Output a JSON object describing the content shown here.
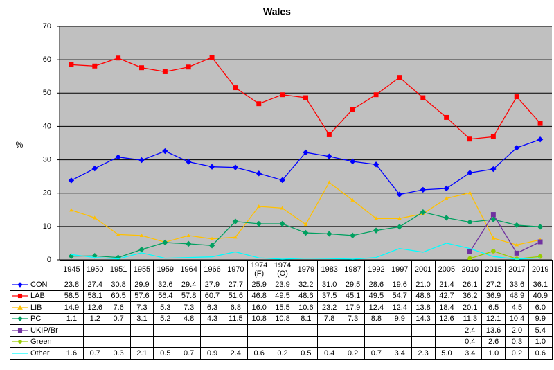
{
  "chart_data": {
    "type": "line",
    "title": "Wales",
    "y_label": "%",
    "categories": [
      "1945",
      "1950",
      "1951",
      "1955",
      "1959",
      "1964",
      "1966",
      "1970",
      "1974 (F)",
      "1974 (O)",
      "1979",
      "1983",
      "1987",
      "1992",
      "1997",
      "2001",
      "2005",
      "2010",
      "2015",
      "2017",
      "2019"
    ],
    "ylim": [
      0,
      70
    ],
    "yticks": [
      0,
      10,
      20,
      30,
      40,
      50,
      60,
      70
    ],
    "grid": true,
    "series": [
      {
        "name": "CON",
        "color": "#0000ff",
        "marker": "diamond",
        "values": [
          23.8,
          27.4,
          30.8,
          29.9,
          32.6,
          29.4,
          27.9,
          27.7,
          25.9,
          23.9,
          32.2,
          31.0,
          29.5,
          28.6,
          19.6,
          21.0,
          21.4,
          26.1,
          27.2,
          33.6,
          36.1
        ],
        "value_labels": [
          "23.8",
          "27.4",
          "30.8",
          "29.9",
          "32.6",
          "29.4",
          "27.9",
          "27.7",
          "25.9",
          "23.9",
          "32.2",
          "31.0",
          "29.5",
          "28.6",
          "19.6",
          "21.0",
          "21.4",
          "26.1",
          "27.2",
          "33.6",
          "36.1"
        ]
      },
      {
        "name": "LAB",
        "color": "#ff0000",
        "marker": "square",
        "values": [
          58.5,
          58.1,
          60.5,
          57.6,
          56.4,
          57.8,
          60.7,
          51.6,
          46.8,
          49.5,
          48.6,
          37.5,
          45.1,
          49.5,
          54.7,
          48.6,
          42.7,
          36.2,
          36.9,
          48.9,
          40.9
        ],
        "value_labels": [
          "58.5",
          "58.1",
          "60.5",
          "57.6",
          "56.4",
          "57.8",
          "60.7",
          "51.6",
          "46.8",
          "49.5",
          "48.6",
          "37.5",
          "45.1",
          "49.5",
          "54.7",
          "48.6",
          "42.7",
          "36.2",
          "36.9",
          "48.9",
          "40.9"
        ]
      },
      {
        "name": "LIB",
        "color": "#ffc000",
        "marker": "triangle",
        "values": [
          14.9,
          12.6,
          7.6,
          7.3,
          5.3,
          7.3,
          6.3,
          6.8,
          16.0,
          15.5,
          10.6,
          23.2,
          17.9,
          12.4,
          12.4,
          13.8,
          18.4,
          20.1,
          6.5,
          4.5,
          6.0
        ],
        "value_labels": [
          "14.9",
          "12.6",
          "7.6",
          "7.3",
          "5.3",
          "7.3",
          "6.3",
          "6.8",
          "16.0",
          "15.5",
          "10.6",
          "23.2",
          "17.9",
          "12.4",
          "12.4",
          "13.8",
          "18.4",
          "20.1",
          "6.5",
          "4.5",
          "6.0"
        ]
      },
      {
        "name": "PC",
        "color": "#00a060",
        "marker": "diamond",
        "values": [
          1.1,
          1.2,
          0.7,
          3.1,
          5.2,
          4.8,
          4.3,
          11.5,
          10.8,
          10.8,
          8.1,
          7.8,
          7.3,
          8.8,
          9.9,
          14.3,
          12.6,
          11.3,
          12.1,
          10.4,
          9.9
        ],
        "value_labels": [
          "1.1",
          "1.2",
          "0.7",
          "3.1",
          "5.2",
          "4.8",
          "4.3",
          "11.5",
          "10.8",
          "10.8",
          "8.1",
          "7.8",
          "7.3",
          "8.8",
          "9.9",
          "14.3",
          "12.6",
          "11.3",
          "12.1",
          "10.4",
          "9.9"
        ]
      },
      {
        "name": "UKIP/Br",
        "color": "#7030a0",
        "marker": "square",
        "values": [
          null,
          null,
          null,
          null,
          null,
          null,
          null,
          null,
          null,
          null,
          null,
          null,
          null,
          null,
          null,
          null,
          null,
          2.4,
          13.6,
          2.0,
          5.4
        ],
        "value_labels": [
          null,
          null,
          null,
          null,
          null,
          null,
          null,
          null,
          null,
          null,
          null,
          null,
          null,
          null,
          null,
          null,
          null,
          "2.4",
          "13.6",
          "2.0",
          "5.4"
        ]
      },
      {
        "name": "Green",
        "color": "#99cc00",
        "marker": "circle",
        "values": [
          null,
          null,
          null,
          null,
          null,
          null,
          null,
          null,
          null,
          null,
          null,
          null,
          null,
          null,
          null,
          null,
          null,
          0.4,
          2.6,
          0.3,
          1.0
        ],
        "value_labels": [
          null,
          null,
          null,
          null,
          null,
          null,
          null,
          null,
          null,
          null,
          null,
          null,
          null,
          null,
          null,
          null,
          null,
          "0.4",
          "2.6",
          "0.3",
          "1.0"
        ]
      },
      {
        "name": "Other",
        "color": "#00ffff",
        "marker": "none",
        "values": [
          1.6,
          0.7,
          0.3,
          2.1,
          0.5,
          0.7,
          0.9,
          2.4,
          0.6,
          0.2,
          0.5,
          0.4,
          0.2,
          0.7,
          3.4,
          2.3,
          5.0,
          3.4,
          1.0,
          0.2,
          0.6
        ],
        "value_labels": [
          "1.6",
          "0.7",
          "0.3",
          "2.1",
          "0.5",
          "0.7",
          "0.9",
          "2.4",
          "0.6",
          "0.2",
          "0.5",
          "0.4",
          "0.2",
          "0.7",
          "3.4",
          "2.3",
          "5.0",
          "3.4",
          "1.0",
          "0.2",
          "0.6"
        ]
      }
    ]
  }
}
